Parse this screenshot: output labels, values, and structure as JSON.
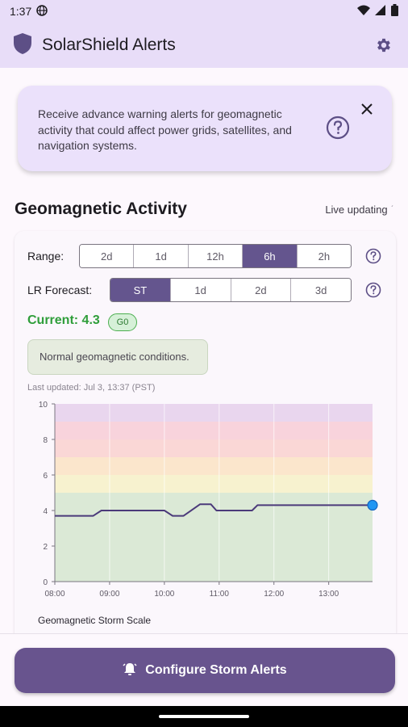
{
  "status_bar": {
    "time": "1:37"
  },
  "app_bar": {
    "title": "SolarShield Alerts",
    "icons": {
      "logo": "shield-icon",
      "settings": "gear-icon"
    }
  },
  "banner": {
    "text": "Receive advance warning alerts for geomagnetic activity that could affect power grids, satellites, and navigation systems.",
    "icons": {
      "help": "help-circle-icon",
      "close": "close-icon"
    }
  },
  "section": {
    "title": "Geomagnetic Activity",
    "live_label": "Live updating"
  },
  "controls": {
    "range_label": "Range:",
    "range_options": [
      "2d",
      "1d",
      "12h",
      "6h",
      "2h"
    ],
    "range_selected": "6h",
    "forecast_label": "LR Forecast:",
    "forecast_options": [
      "ST",
      "1d",
      "2d",
      "3d"
    ],
    "forecast_selected": "ST"
  },
  "current": {
    "label": "Current: 4.3",
    "badge": "G0"
  },
  "condition_text": "Normal geomagnetic conditions.",
  "last_updated": "Last updated: Jul 3, 13:37 (PST)",
  "colors": {
    "accent": "#64558e",
    "line": "#4b3a7a",
    "current_point": "#2196f3",
    "current_text": "#2f9e3a"
  },
  "chart_data": {
    "type": "line",
    "title": "",
    "xlabel": "",
    "ylabel": "",
    "ylim": [
      0,
      10
    ],
    "yticks": [
      "0",
      "2",
      "4",
      "6",
      "8",
      "10"
    ],
    "xticks": [
      "08:00",
      "09:00",
      "10:00",
      "11:00",
      "12:00",
      "13:00"
    ],
    "xlim_hours": [
      8.0,
      13.8
    ],
    "bands": [
      {
        "from": 0,
        "to": 5,
        "color": "#dbe9d6"
      },
      {
        "from": 5,
        "to": 6,
        "color": "#f7f2cf"
      },
      {
        "from": 6,
        "to": 7,
        "color": "#fbe6cc"
      },
      {
        "from": 7,
        "to": 8,
        "color": "#fad7d6"
      },
      {
        "from": 8,
        "to": 9,
        "color": "#f8d3dc"
      },
      {
        "from": 9,
        "to": 10,
        "color": "#e9d6ee"
      }
    ],
    "series": [
      {
        "points": [
          [
            8.0,
            3.7
          ],
          [
            8.7,
            3.7
          ],
          [
            8.85,
            4.0
          ],
          [
            9.5,
            4.0
          ],
          [
            10.0,
            4.0
          ],
          [
            10.15,
            3.7
          ],
          [
            10.35,
            3.7
          ],
          [
            10.65,
            4.35
          ],
          [
            10.85,
            4.35
          ],
          [
            10.95,
            4.0
          ],
          [
            11.6,
            4.0
          ],
          [
            11.7,
            4.3
          ],
          [
            12.5,
            4.3
          ],
          [
            13.3,
            4.3
          ],
          [
            13.8,
            4.3
          ]
        ]
      }
    ],
    "current_point": [
      13.8,
      4.3
    ],
    "caption": "Geomagnetic Storm Scale"
  },
  "cta": {
    "label": "Configure Storm Alerts",
    "icon": "alarm-bell-icon"
  }
}
